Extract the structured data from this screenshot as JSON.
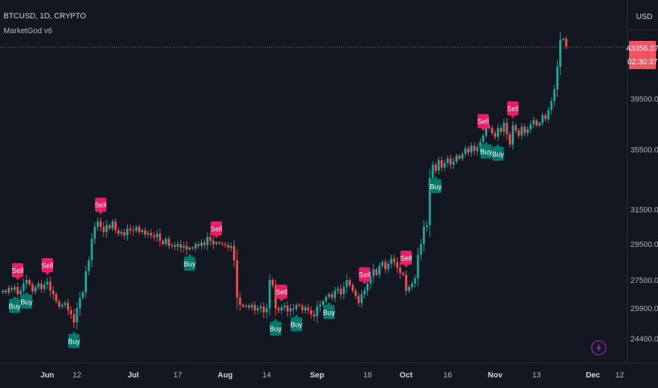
{
  "header": {
    "symbol_line": "BTCUSD, 1D, CRYPTO",
    "indicator": "MarketGod v6"
  },
  "currency": "USD",
  "colors": {
    "up": "#26a69a",
    "down": "#ef5350",
    "buy": "#00796b",
    "sell": "#e91e63",
    "background": "#131722",
    "text": "#b2b5be"
  },
  "chart_data": {
    "type": "candlestick",
    "price_axis": {
      "ticks": [
        "39500.00",
        "35500.00",
        "31500.00",
        "29500.00",
        "27500.00",
        "25900.00",
        "24400.00"
      ],
      "last_price": "43356.07",
      "countdown": "02:30:37"
    },
    "time_axis": {
      "ticks": [
        "Jun",
        "12",
        "Jul",
        "17",
        "Aug",
        "14",
        "Sep",
        "18",
        "Oct",
        "16",
        "Nov",
        "13",
        "Dec",
        "12"
      ]
    },
    "closes": [
      26900,
      26800,
      27050,
      26950,
      27100,
      26700,
      26900,
      27300,
      27500,
      27250,
      26850,
      27100,
      27300,
      27000,
      27250,
      27400,
      26900,
      26700,
      26300,
      26000,
      26100,
      26200,
      25800,
      25600,
      25200,
      25900,
      26500,
      26800,
      28000,
      28600,
      29800,
      30500,
      30800,
      30500,
      30200,
      30600,
      30400,
      30800,
      30300,
      30100,
      30200,
      30000,
      30400,
      30300,
      30250,
      30500,
      30200,
      30300,
      30050,
      30150,
      30000,
      29900,
      30100,
      29700,
      29500,
      29800,
      29400,
      29450,
      29350,
      29500,
      29300,
      29400,
      29200,
      29300,
      29250,
      29500,
      29400,
      29600,
      29450,
      29900,
      29700,
      29500,
      29600,
      29550,
      29500,
      29450,
      29300,
      29400,
      28600,
      26500,
      26100,
      26000,
      26050,
      25950,
      26100,
      25800,
      25900,
      26000,
      25700,
      25900,
      27500,
      27200,
      25900,
      25800,
      25950,
      26050,
      25750,
      25900,
      25850,
      26100,
      26050,
      25800,
      25950,
      25800,
      25600,
      25500,
      26000,
      26100,
      26300,
      26550,
      26700,
      26500,
      26900,
      27000,
      26700,
      27100,
      27500,
      27200,
      26900,
      26600,
      26200,
      26700,
      26900,
      27300,
      27700,
      28100,
      27800,
      28300,
      28500,
      28100,
      28400,
      28700,
      28500,
      28200,
      27900,
      27800,
      26900,
      27100,
      27300,
      27600,
      28900,
      29500,
      30500,
      30600,
      33600,
      34500,
      34100,
      34800,
      34300,
      34600,
      34900,
      34500,
      34700,
      35100,
      34900,
      35200,
      35600,
      35300,
      35800,
      35400,
      35700,
      36100,
      36600,
      37400,
      37200,
      36800,
      36500,
      37200,
      36900,
      37600,
      36700,
      35900,
      37400,
      37000,
      36600,
      37300,
      36800,
      37100,
      37500,
      37800,
      37400,
      37600,
      38200,
      37900,
      38600,
      39300,
      40200,
      41900,
      43900,
      44000,
      43400
    ],
    "buy_signal_indices": [
      4,
      8,
      24,
      63,
      92,
      99,
      110,
      146,
      163,
      167
    ],
    "sell_signal_indices": [
      5,
      15,
      33,
      72,
      94,
      122,
      136,
      162,
      172
    ]
  },
  "labels": {
    "buy": "Buy",
    "sell": "Sell"
  },
  "icons": {
    "bolt": "lightning-bolt-icon"
  }
}
